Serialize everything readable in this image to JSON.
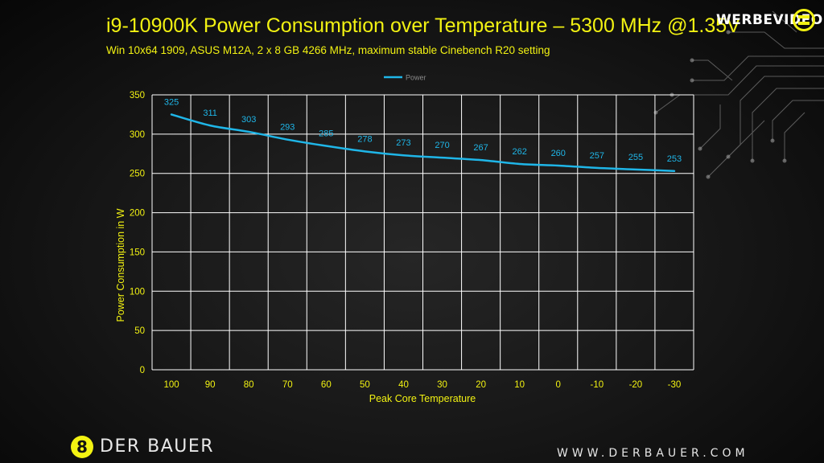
{
  "slide": {
    "title": "i9-10900K Power Consumption over Temperature – 5300 MHz @1.35V",
    "subtitle": "Win 10x64 1909, ASUS M12A, 2 x 8 GB 4266 MHz, maximum stable Cinebench R20 setting"
  },
  "branding": {
    "watermark": "WERBEVIDEO",
    "logo_badge": "8",
    "logo_text": "DER BAUER",
    "website": "WWW.DERBAUER.COM"
  },
  "colors": {
    "title": "#f2f212",
    "line": "#1fb6e8",
    "grid": "#ffffff",
    "axis_text": "#f2f212"
  },
  "chart_data": {
    "type": "line",
    "categories": [
      "100",
      "90",
      "80",
      "70",
      "60",
      "50",
      "40",
      "30",
      "20",
      "10",
      "0",
      "-10",
      "-20",
      "-30"
    ],
    "series": [
      {
        "name": "Power",
        "values": [
          325,
          311,
          303,
          293,
          285,
          278,
          273,
          270,
          267,
          262,
          260,
          257,
          255,
          253
        ]
      }
    ],
    "xlabel": "Peak Core Temperature",
    "ylabel": "Power Consumption in W",
    "ylim": [
      0,
      350
    ],
    "yticks": [
      0,
      50,
      100,
      150,
      200,
      250,
      300,
      350
    ],
    "grid": true,
    "legend_position": "top-center",
    "data_labels": true
  }
}
